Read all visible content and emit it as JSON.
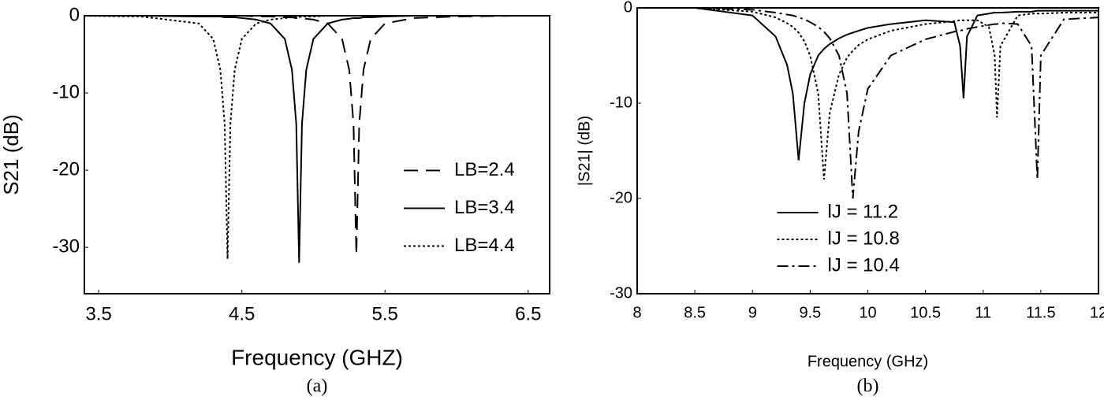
{
  "chart_data": [
    {
      "type": "line",
      "title": "(a)",
      "x_label": "Frequency (GHZ)",
      "y_label": "S21 (dB)",
      "x": [
        3.4,
        3.8,
        4.2,
        4.3,
        4.35,
        4.38,
        4.4,
        4.42,
        4.45,
        4.5,
        4.6,
        4.7,
        4.8,
        4.85,
        4.88,
        4.9,
        4.92,
        4.95,
        5.0,
        5.1,
        5.2,
        5.25,
        5.28,
        5.3,
        5.32,
        5.35,
        5.4,
        5.5,
        5.7,
        6.0,
        6.4,
        6.65
      ],
      "series": [
        {
          "name": "LB=2.4",
          "color": "#000000",
          "dash": "dashed",
          "values": [
            0,
            0,
            0,
            0,
            0,
            0,
            0,
            0,
            0,
            0,
            -0.1,
            -0.1,
            -0.2,
            -0.2,
            -0.3,
            -0.3,
            -0.3,
            -0.4,
            -0.5,
            -1.0,
            -3,
            -7,
            -14,
            -31,
            -14,
            -7,
            -3,
            -1.0,
            -0.3,
            -0.1,
            0,
            0
          ]
        },
        {
          "name": "LB=3.4",
          "color": "#000000",
          "dash": "solid",
          "values": [
            0,
            0,
            -0.1,
            -0.1,
            -0.1,
            -0.2,
            -0.2,
            -0.2,
            -0.2,
            -0.3,
            -0.5,
            -1.0,
            -3,
            -7,
            -14,
            -32,
            -14,
            -7,
            -3,
            -1.0,
            -0.5,
            -0.4,
            -0.3,
            -0.3,
            -0.3,
            -0.2,
            -0.2,
            -0.1,
            0,
            0,
            0,
            0
          ]
        },
        {
          "name": "LB=4.4",
          "color": "#000000",
          "dash": "dotted",
          "values": [
            0,
            -0.1,
            -1.0,
            -3,
            -7,
            -14,
            -31.5,
            -14,
            -7,
            -3,
            -1.0,
            -0.5,
            -0.3,
            -0.2,
            -0.2,
            -0.2,
            -0.1,
            -0.1,
            -0.1,
            0,
            0,
            0,
            0,
            0,
            0,
            0,
            0,
            0,
            0,
            0,
            0,
            0
          ]
        }
      ],
      "xlim": [
        3.4,
        6.65
      ],
      "xticks": [
        3.5,
        4.5,
        5.5,
        6.5
      ],
      "ylim": [
        -36,
        0
      ],
      "yticks": [
        0,
        -10,
        -20,
        -30
      ],
      "grid": false,
      "legend": "right"
    },
    {
      "type": "line",
      "title": "(b)",
      "x_label": "Frequency (GHz)",
      "y_label": "|S21| (dB)",
      "x": [
        8,
        8.5,
        9,
        9.2,
        9.3,
        9.35,
        9.4,
        9.45,
        9.5,
        9.57,
        9.62,
        9.67,
        9.75,
        9.82,
        9.87,
        9.92,
        10,
        10.2,
        10.5,
        10.75,
        10.8,
        10.83,
        10.86,
        10.95,
        11.05,
        11.1,
        11.12,
        11.15,
        11.3,
        11.42,
        11.47,
        11.5,
        11.7,
        12
      ],
      "series": [
        {
          "name": "lJ = 11.2",
          "color": "#000000",
          "dash": "solid",
          "values": [
            0,
            0,
            -0.8,
            -3,
            -6,
            -9,
            -16,
            -10,
            -7,
            -5,
            -4.3,
            -3.8,
            -3.2,
            -2.8,
            -2.6,
            -2.4,
            -2.1,
            -1.7,
            -1.3,
            -1.5,
            -4,
            -9.5,
            -3,
            -0.8,
            -0.6,
            -0.5,
            -0.5,
            -0.5,
            -0.4,
            -0.4,
            -0.3,
            -0.3,
            -0.3,
            -0.3
          ]
        },
        {
          "name": "lJ = 10.8",
          "color": "#000000",
          "dash": "dotted",
          "values": [
            0,
            0,
            -0.4,
            -1,
            -1.6,
            -2,
            -2.6,
            -3.5,
            -5,
            -9,
            -18,
            -11,
            -7,
            -5.2,
            -4.5,
            -3.9,
            -3.3,
            -2.4,
            -1.7,
            -1.4,
            -1.3,
            -1.3,
            -1.3,
            -1.3,
            -2,
            -5,
            -11.5,
            -4,
            -0.8,
            -0.6,
            -0.6,
            -0.6,
            -0.5,
            -0.5
          ]
        },
        {
          "name": "lJ = 10.4",
          "color": "#000000",
          "dash": "dashdot",
          "values": [
            0,
            0,
            -0.2,
            -0.5,
            -0.7,
            -0.8,
            -1,
            -1.2,
            -1.5,
            -2,
            -2.5,
            -3.2,
            -5,
            -9,
            -20,
            -13,
            -8.5,
            -5,
            -3.3,
            -2.5,
            -2.4,
            -2.3,
            -2.2,
            -2,
            -1.8,
            -1.7,
            -1.7,
            -1.6,
            -1.7,
            -4,
            -18,
            -5,
            -1.2,
            -1
          ]
        }
      ],
      "xlim": [
        8,
        12
      ],
      "xticks": [
        8,
        8.5,
        9,
        9.5,
        10,
        10.5,
        11,
        11.5,
        12
      ],
      "ylim": [
        -30,
        0
      ],
      "yticks": [
        0,
        -10,
        -20,
        -30
      ],
      "grid": false,
      "legend": "lower center"
    }
  ]
}
